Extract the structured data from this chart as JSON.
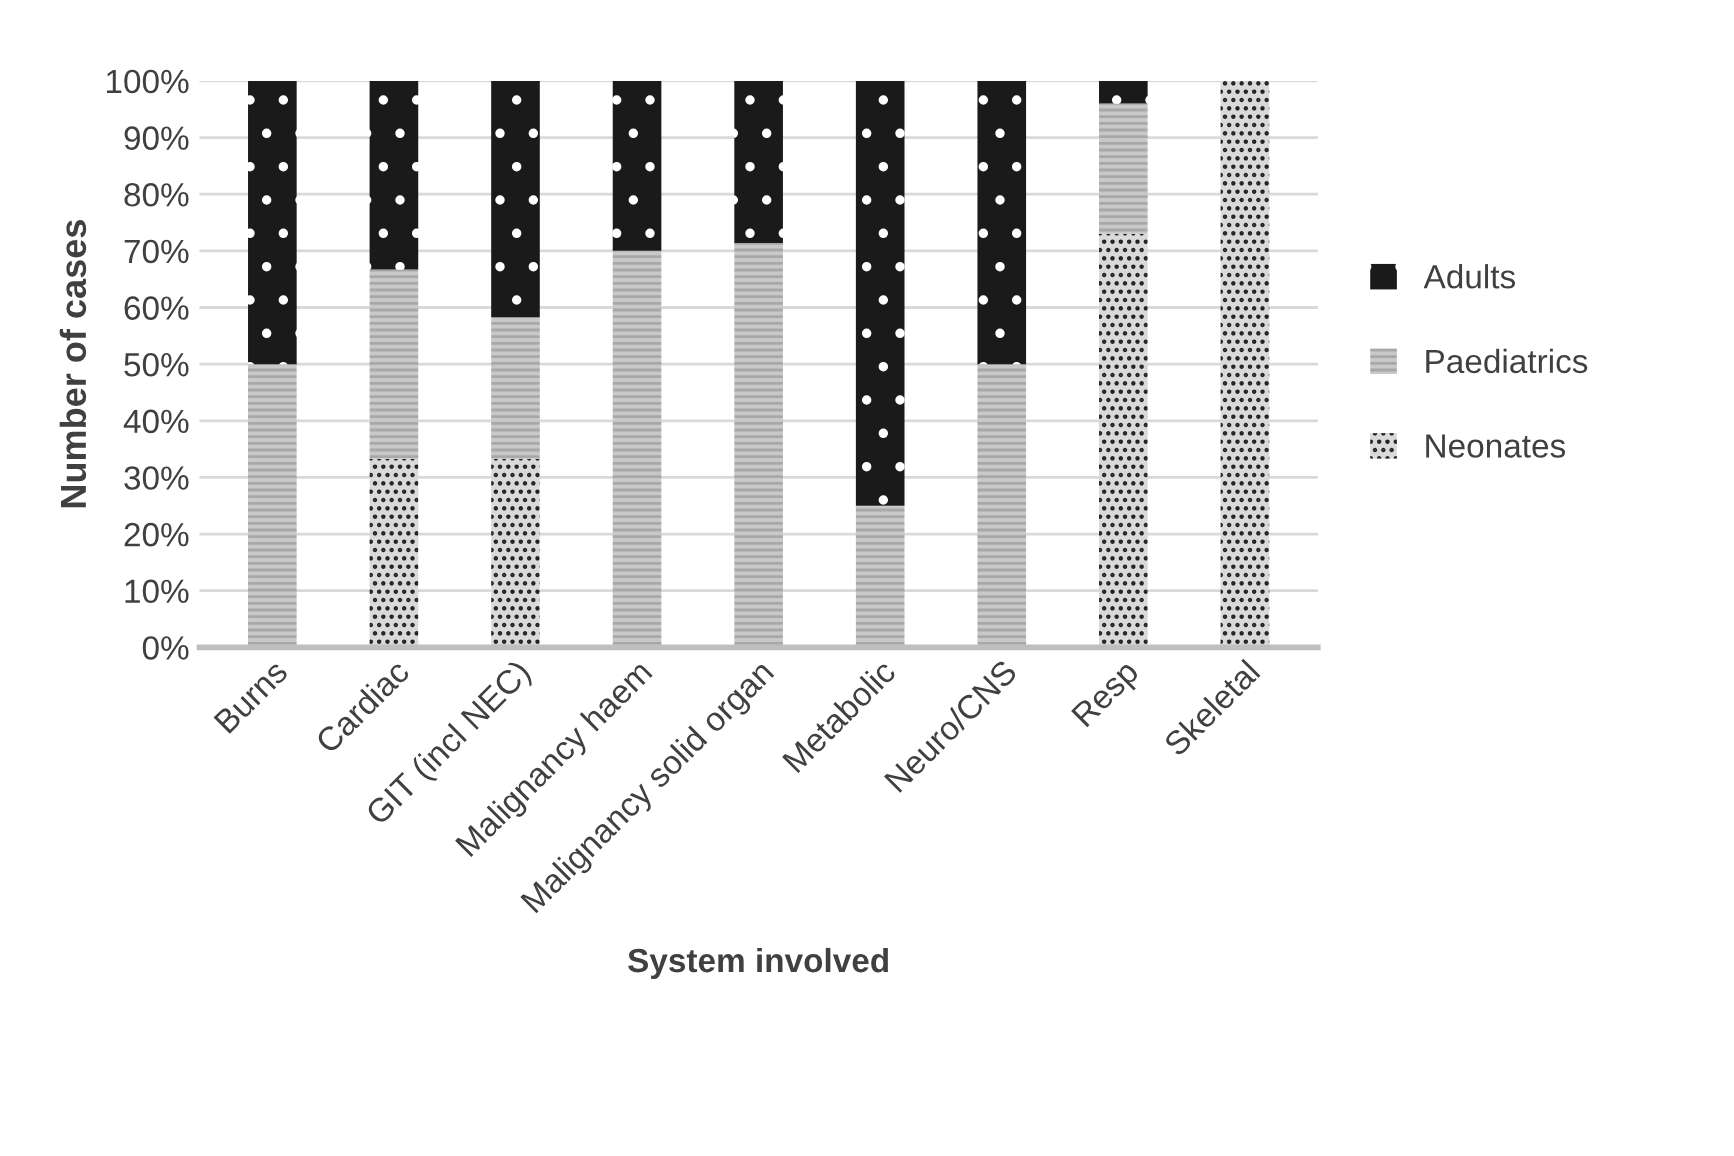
{
  "chart_data": {
    "type": "bar",
    "stacked": true,
    "xlabel": "System involved",
    "ylabel": "Number of cases",
    "categories": [
      "Burns",
      "Cardiac",
      "GIT (incl NEC)",
      "Malignancy haem",
      "Malignancy solid organ",
      "Metabolic",
      "Neuro/CNS",
      "Resp",
      "Skeletal"
    ],
    "series": [
      {
        "name": "Neonates",
        "color": "#d9d9d9",
        "values": [
          0,
          33.3,
          33.3,
          0,
          0,
          0,
          0,
          73,
          100
        ]
      },
      {
        "name": "Paediatrics",
        "color": "#c8c8c8",
        "values": [
          50,
          33.4,
          25,
          70,
          71.4,
          25,
          50,
          23,
          0
        ]
      },
      {
        "name": "Adults",
        "color": "#1a1a1a",
        "values": [
          50,
          33.3,
          41.7,
          30,
          28.6,
          75,
          50,
          4,
          0
        ]
      }
    ],
    "ylim": [
      0,
      100
    ],
    "yticks": [
      {
        "value": 0,
        "label": "0%"
      },
      {
        "value": 10,
        "label": "10%"
      },
      {
        "value": 20,
        "label": "20%"
      },
      {
        "value": 30,
        "label": "30%"
      },
      {
        "value": 40,
        "label": "40%"
      },
      {
        "value": 50,
        "label": "50%"
      },
      {
        "value": 60,
        "label": "60%"
      },
      {
        "value": 70,
        "label": "70%"
      },
      {
        "value": 80,
        "label": "80%"
      },
      {
        "value": 90,
        "label": "90%"
      },
      {
        "value": 100,
        "label": "100%"
      }
    ],
    "grid": "y",
    "legend": "right"
  }
}
